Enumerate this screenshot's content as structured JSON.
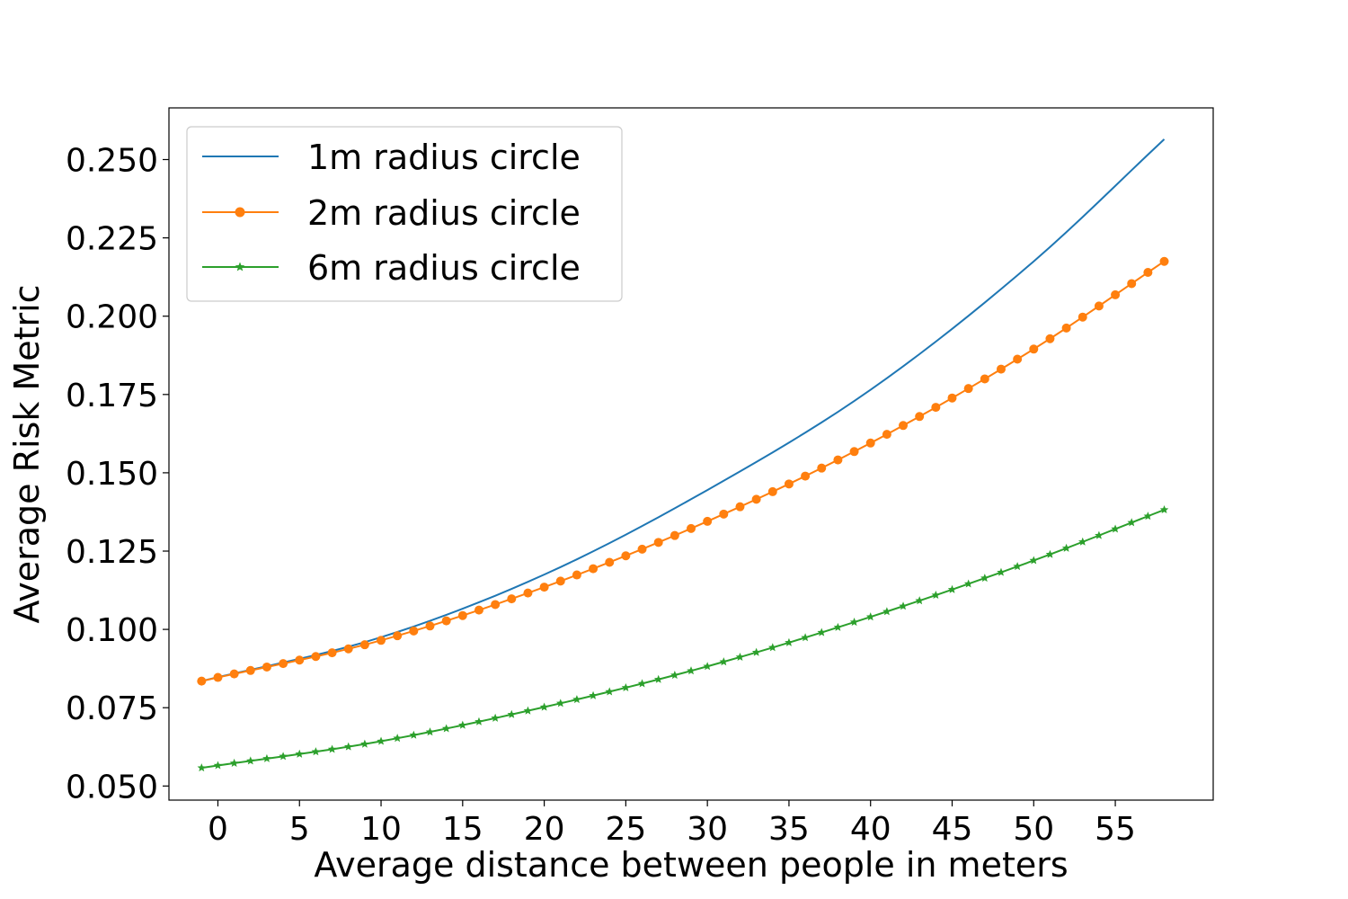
{
  "chart_data": {
    "type": "line",
    "title": "",
    "xlabel": "Average distance between people in meters",
    "ylabel": "Average Risk Metric",
    "xlim": [
      -3.0,
      61.0
    ],
    "ylim": [
      0.0455,
      0.2665
    ],
    "xticks": [
      0,
      5,
      10,
      15,
      20,
      25,
      30,
      35,
      40,
      45,
      50,
      55
    ],
    "xtick_labels": [
      "0",
      "5",
      "10",
      "15",
      "20",
      "25",
      "30",
      "35",
      "40",
      "45",
      "50",
      "55"
    ],
    "yticks": [
      0.05,
      0.075,
      0.1,
      0.125,
      0.15,
      0.175,
      0.2,
      0.225,
      0.25
    ],
    "ytick_labels": [
      "0.050",
      "0.075",
      "0.100",
      "0.125",
      "0.150",
      "0.175",
      "0.200",
      "0.225",
      "0.250"
    ],
    "grid": false,
    "legend_position": "top-left",
    "x_range": {
      "start": -1,
      "end": 58,
      "step": 1
    },
    "series": [
      {
        "name": "1m radius circle",
        "color": "#1f77b4",
        "marker": "none",
        "curve_points": {
          "x": [
            -1,
            10,
            20,
            30,
            40,
            50,
            58
          ],
          "y": [
            0.0835,
            0.0975,
            0.1175,
            0.1445,
            0.1765,
            0.2175,
            0.2565
          ]
        }
      },
      {
        "name": "2m radius circle",
        "color": "#ff7f0e",
        "marker": "circle",
        "curve_points": {
          "x": [
            -1,
            10,
            20,
            30,
            40,
            50,
            58
          ],
          "y": [
            0.0835,
            0.0965,
            0.1135,
            0.1345,
            0.1595,
            0.1895,
            0.2175
          ]
        }
      },
      {
        "name": "6m radius circle",
        "color": "#2ca02c",
        "marker": "star",
        "curve_points": {
          "x": [
            -1,
            10,
            20,
            30,
            40,
            50,
            58
          ],
          "y": [
            0.0558,
            0.0643,
            0.0752,
            0.0882,
            0.104,
            0.122,
            0.1382
          ]
        }
      }
    ]
  }
}
